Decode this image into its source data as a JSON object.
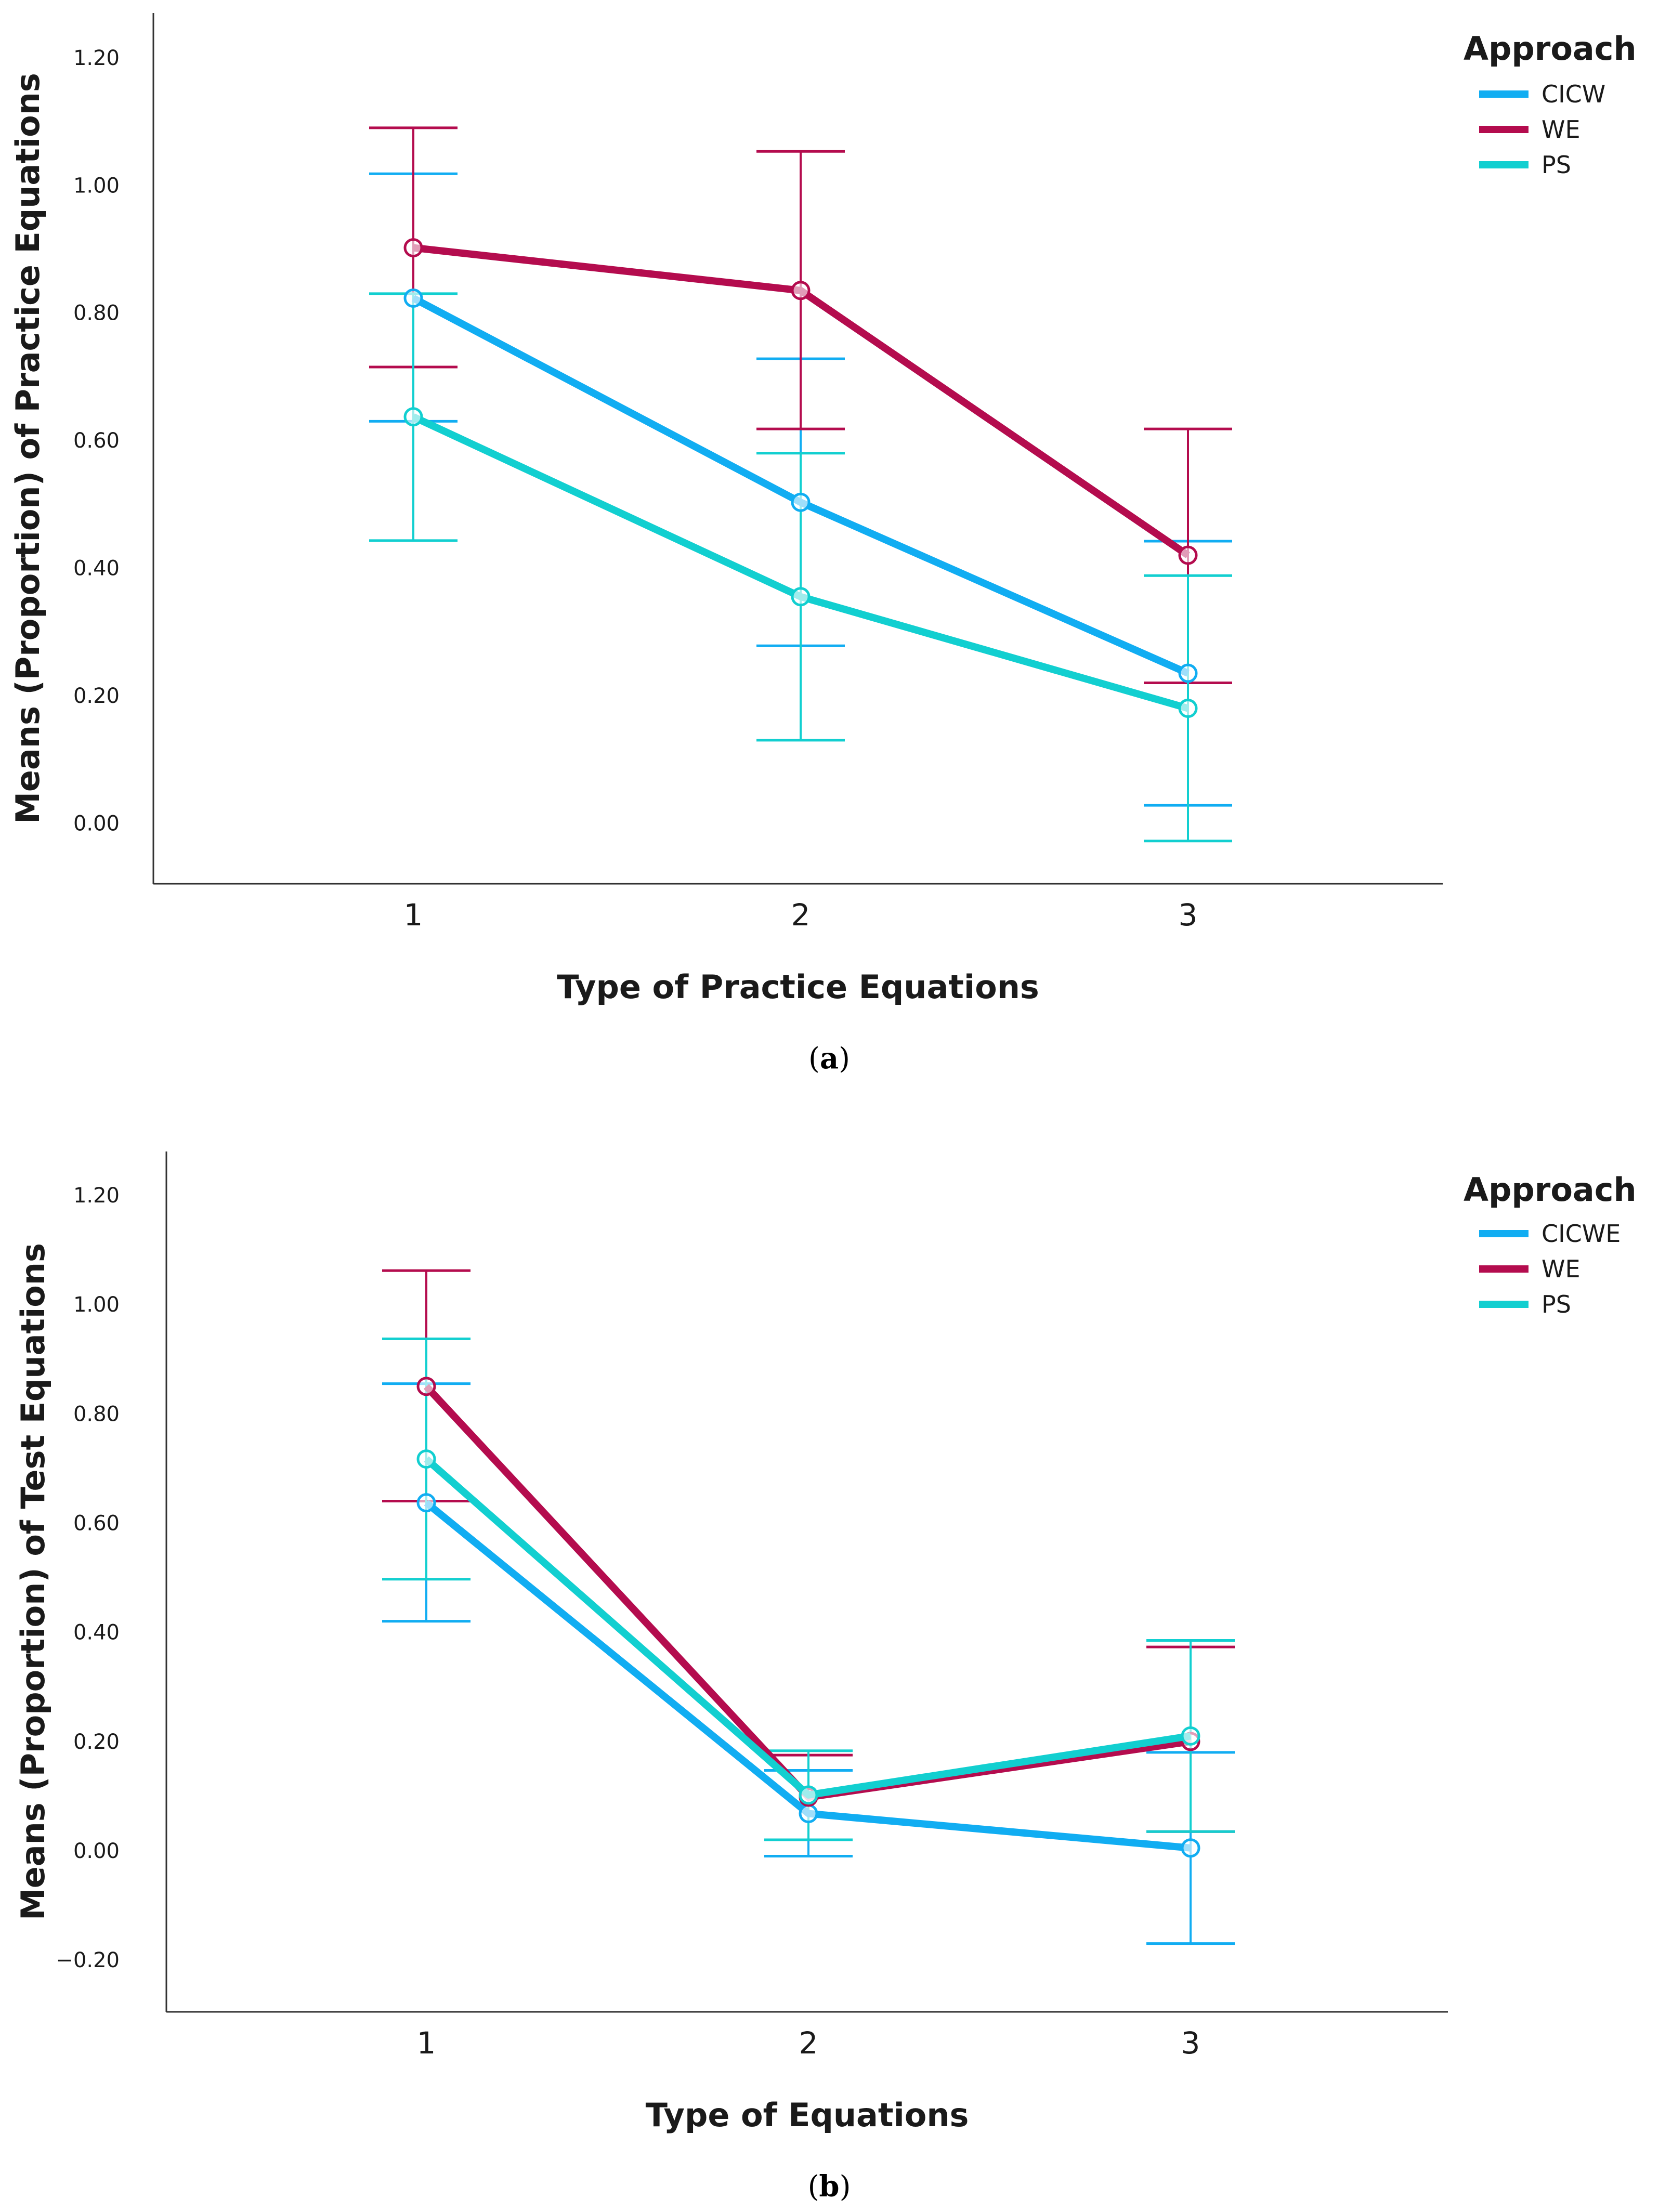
{
  "colors": {
    "CICW": "#11adf2",
    "CICWE": "#11adf2",
    "WE": "#b40c4e",
    "PS": "#12cfd0"
  },
  "chart_data": [
    {
      "type": "line",
      "panel_caption": "(a)",
      "caption_letter": "a",
      "xlabel": "Type of Practice Equations",
      "ylabel": "Means (Proportion) of Practice Equations",
      "categories": [
        "1",
        "2",
        "3"
      ],
      "ylim": [
        -0.095,
        1.27
      ],
      "yticks": [
        "1.20",
        "1.00",
        "0.80",
        "0.60",
        "0.40",
        "0.20",
        "0.00"
      ],
      "ytick_values": [
        1.2,
        1.0,
        0.8,
        0.6,
        0.4,
        0.2,
        0.0
      ],
      "legend_title": "Approach",
      "legend_position": "top-right",
      "series": [
        {
          "name": "CICW",
          "values": [
            0.823,
            0.503,
            0.235
          ],
          "err_low": [
            0.63,
            0.278,
            0.028
          ],
          "err_high": [
            1.018,
            0.728,
            0.442
          ]
        },
        {
          "name": "WE",
          "values": [
            0.902,
            0.835,
            0.42
          ],
          "err_low": [
            0.715,
            0.618,
            0.22
          ],
          "err_high": [
            1.09,
            1.053,
            0.618
          ]
        },
        {
          "name": "PS",
          "values": [
            0.637,
            0.355,
            0.18
          ],
          "err_low": [
            0.443,
            0.13,
            -0.028
          ],
          "err_high": [
            0.83,
            0.58,
            0.388
          ]
        }
      ]
    },
    {
      "type": "line",
      "panel_caption": "(b)",
      "caption_letter": "b",
      "xlabel": "Type of Equations",
      "ylabel": "Means (Proportion) of Test Equations",
      "categories": [
        "1",
        "2",
        "3"
      ],
      "ylim": [
        -0.295,
        1.28
      ],
      "yticks": [
        "1.20",
        "1.00",
        "0.80",
        "0.60",
        "0.40",
        "0.20",
        "0.00",
        "−0.20"
      ],
      "ytick_values": [
        1.2,
        1.0,
        0.8,
        0.6,
        0.4,
        0.2,
        0.0,
        -0.2
      ],
      "legend_title": "Approach",
      "legend_position": "top-right",
      "series": [
        {
          "name": "CICWE",
          "values": [
            0.637,
            0.068,
            0.005
          ],
          "err_low": [
            0.42,
            -0.01,
            -0.17
          ],
          "err_high": [
            0.855,
            0.147,
            0.18
          ]
        },
        {
          "name": "WE",
          "values": [
            0.85,
            0.098,
            0.2
          ],
          "err_low": [
            0.64,
            0.02,
            0.035
          ],
          "err_high": [
            1.062,
            0.175,
            0.373
          ]
        },
        {
          "name": "PS",
          "values": [
            0.717,
            0.102,
            0.21
          ],
          "err_low": [
            0.497,
            0.02,
            0.035
          ],
          "err_high": [
            0.937,
            0.183,
            0.385
          ]
        }
      ]
    }
  ]
}
